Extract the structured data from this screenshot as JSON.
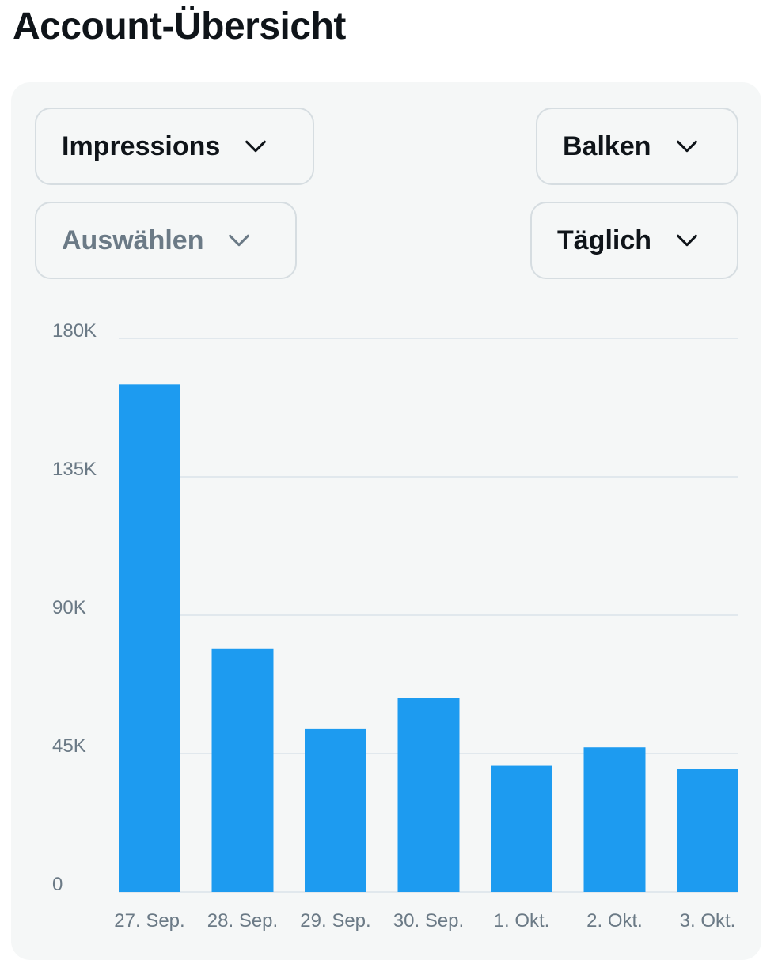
{
  "page": {
    "title": "Account-Übersicht"
  },
  "controls": {
    "metric": "Impressions",
    "compare_placeholder": "Auswählen",
    "chart_type": "Balken",
    "interval": "Täglich"
  },
  "icons": {
    "dropdown": "chevron-down-icon"
  },
  "colors": {
    "bar": "#1d9bf0",
    "grid": "#e1e8ed",
    "muted_text": "#6b7a86"
  },
  "chart_data": {
    "type": "bar",
    "title": "",
    "xlabel": "",
    "ylabel": "",
    "categories": [
      "27. Sep.",
      "28. Sep.",
      "29. Sep.",
      "30. Sep.",
      "1. Okt.",
      "2. Okt.",
      "3. Okt."
    ],
    "values": [
      165000,
      79000,
      53000,
      63000,
      41000,
      47000,
      40000
    ],
    "ylim": [
      0,
      180000
    ],
    "yticks": [
      0,
      45000,
      90000,
      135000,
      180000
    ],
    "ytick_labels": [
      "0",
      "45K",
      "90K",
      "135K",
      "180K"
    ],
    "grid": true,
    "legend": "none"
  }
}
